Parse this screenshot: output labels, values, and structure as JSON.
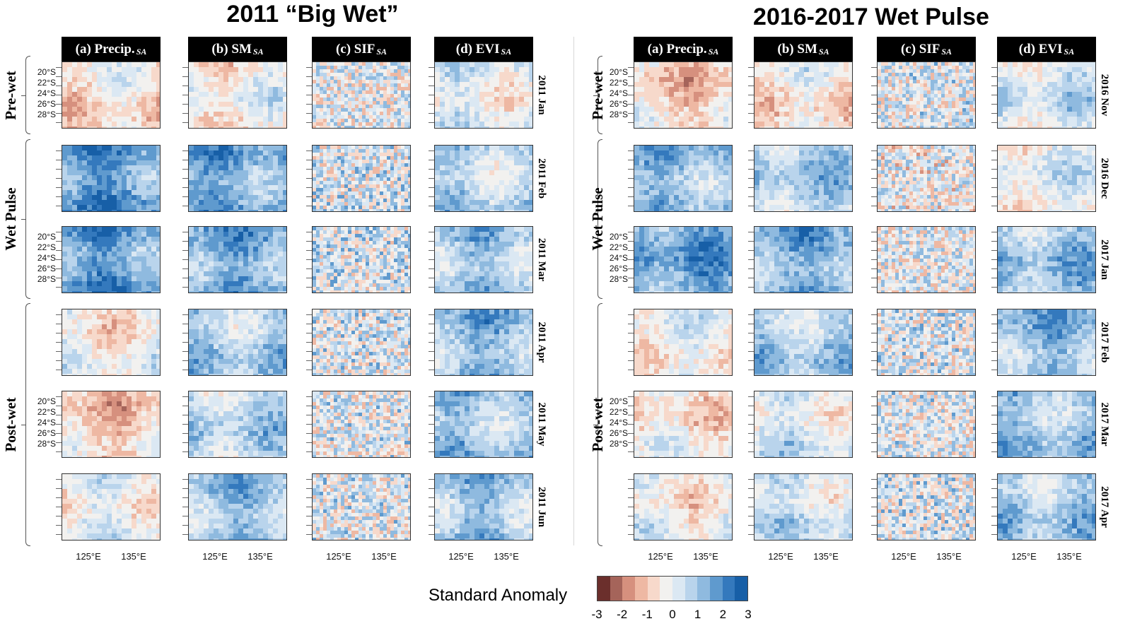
{
  "titles": {
    "left": "2011 “Big Wet”",
    "right": "2016-2017 Wet Pulse"
  },
  "columns": [
    {
      "name": "(a) Precip.",
      "sub": "SA"
    },
    {
      "name": "(b) SM",
      "sub": "SA"
    },
    {
      "name": "(c) SIF",
      "sub": "SA"
    },
    {
      "name": "(d) EVI",
      "sub": "SA"
    }
  ],
  "phases": [
    "Pre-wet",
    "Wet Pulse",
    "Post-wet"
  ],
  "lat_ticks": [
    "20°S",
    "22°S",
    "24°S",
    "26°S",
    "28°S"
  ],
  "lon_ticks": [
    "125°E",
    "135°E"
  ],
  "left_months": [
    "2011 Jan",
    "2011 Feb",
    "2011 Mar",
    "2011 Apr",
    "2011 May",
    "2011 Jun"
  ],
  "right_months": [
    "2016 Nov",
    "2016 Dec",
    "2017 Jan",
    "2017 Feb",
    "2017 Mar",
    "2017 Apr"
  ],
  "legend": {
    "title": "Standard Anomaly",
    "ticks": [
      "-3",
      "-2",
      "-1",
      "0",
      "1",
      "2",
      "3"
    ],
    "colors": [
      "#6b2f2c",
      "#a5645a",
      "#d6907e",
      "#eeb8a3",
      "#f7d9cb",
      "#f2f1ef",
      "#dbe8f3",
      "#b9d4ec",
      "#8fbadf",
      "#5f9ace",
      "#3479bd",
      "#175fa7"
    ]
  },
  "panel_bias": {
    "left": [
      [
        -0.6,
        -0.3,
        0.0,
        0.1
      ],
      [
        1.9,
        1.6,
        0.2,
        0.7
      ],
      [
        1.8,
        1.5,
        0.3,
        1.0
      ],
      [
        -0.3,
        0.9,
        0.2,
        1.2
      ],
      [
        -0.9,
        0.7,
        0.1,
        1.1
      ],
      [
        0.0,
        1.1,
        0.1,
        1.0
      ]
    ],
    "right": [
      [
        -0.8,
        -0.5,
        0.1,
        0.3
      ],
      [
        1.2,
        0.9,
        -0.1,
        0.0
      ],
      [
        1.7,
        1.4,
        0.0,
        1.1
      ],
      [
        -0.2,
        0.9,
        0.2,
        1.2
      ],
      [
        -0.5,
        0.2,
        0.1,
        1.1
      ],
      [
        -0.2,
        0.4,
        0.2,
        1.0
      ]
    ]
  }
}
